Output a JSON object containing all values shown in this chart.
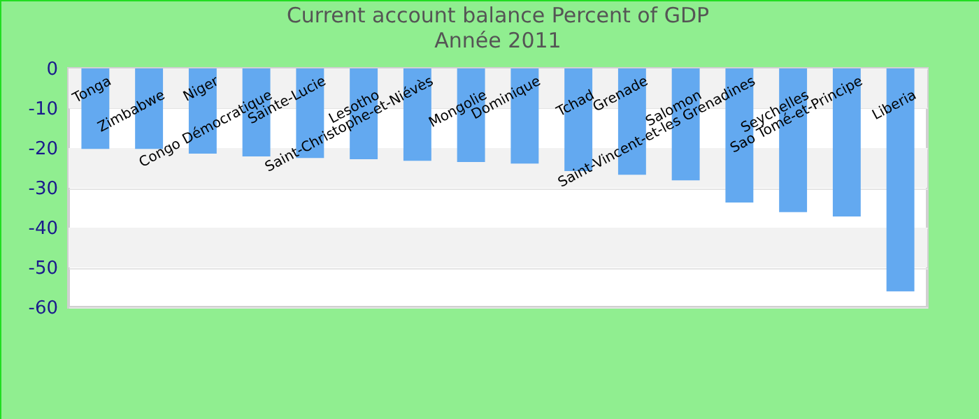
{
  "chart_data": {
    "type": "bar",
    "title": "Current account balance  Percent of GDP",
    "subtitle": "Année 2011",
    "categories": [
      "Tonga",
      "Zimbabwe",
      "Niger",
      "Congo Démocratique",
      "Sainte-Lucie",
      "Lesotho",
      "Saint-Christophe-et-Niévès",
      "Mongolie",
      "Dominique",
      "Tchad",
      "Grenade",
      "Salomon",
      "Saint-Vincent-et-les Grenadines",
      "Seychelles",
      "Sao Tomé-et-Principe",
      "Liberia"
    ],
    "values": [
      -20.2,
      -20.2,
      -21.4,
      -22.1,
      -22.5,
      -22.8,
      -23.2,
      -23.5,
      -23.9,
      -25.8,
      -26.7,
      -28.1,
      -33.7,
      -36.1,
      -37.2,
      -56.0
    ],
    "color": "#63a9f0",
    "ylim": [
      -60,
      0
    ],
    "yticks": [
      -60,
      -50,
      -40,
      -30,
      -20,
      -10,
      0
    ],
    "grid": "y"
  }
}
